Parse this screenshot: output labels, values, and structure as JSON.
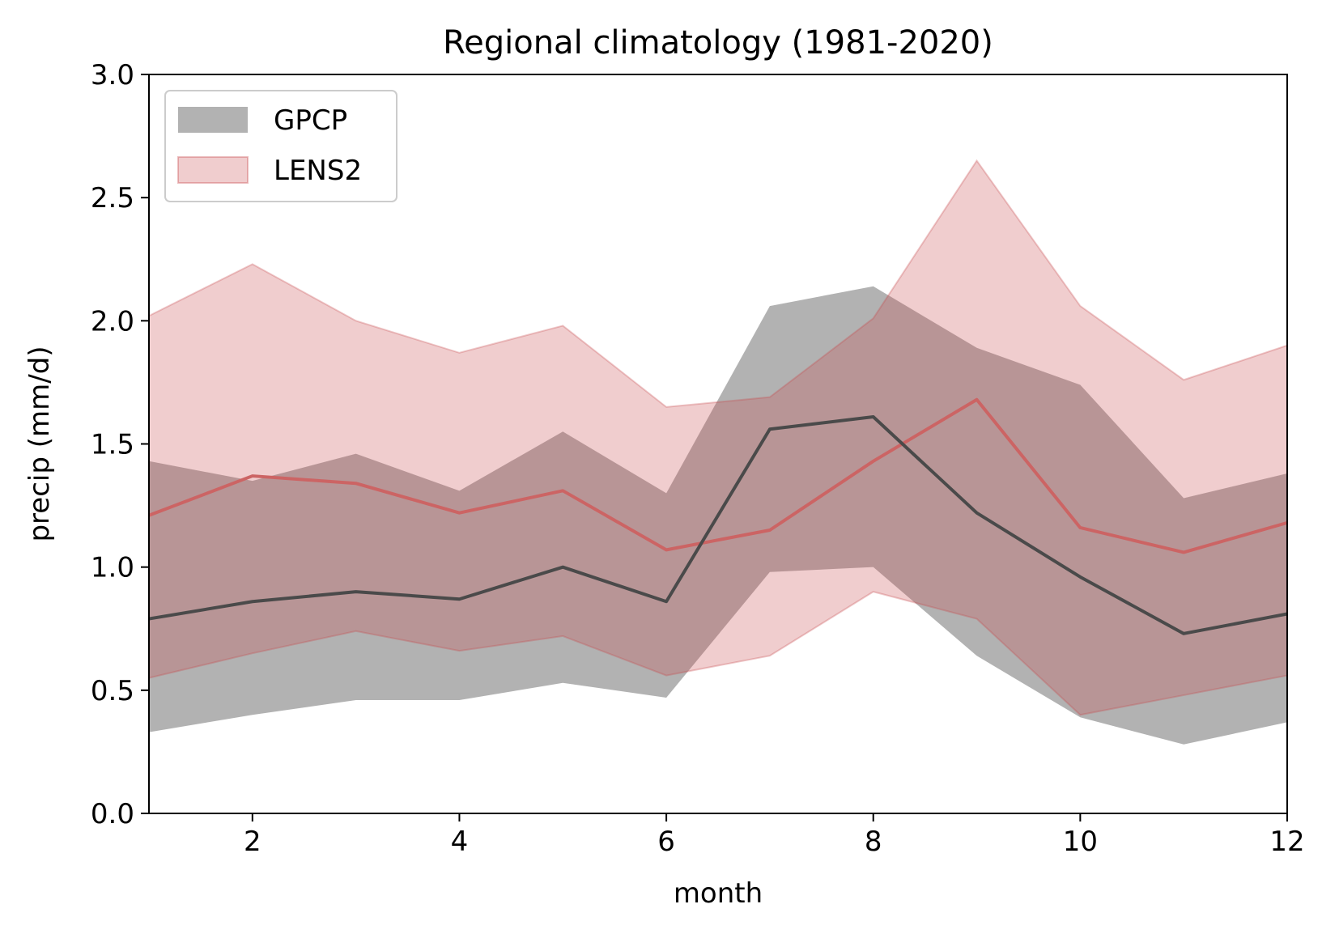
{
  "chart_data": {
    "type": "area",
    "title": "Regional climatology (1981-2020)",
    "xlabel": "month",
    "ylabel": "precip (mm/d)",
    "xlim": [
      1,
      12
    ],
    "ylim": [
      0,
      3
    ],
    "xticks": [
      "2",
      "4",
      "6",
      "8",
      "10",
      "12"
    ],
    "yticks": [
      "0.0",
      "0.5",
      "1.0",
      "1.5",
      "2.0",
      "2.5",
      "3.0"
    ],
    "grid": false,
    "legend_position": "top-left",
    "x": [
      1,
      2,
      3,
      4,
      5,
      6,
      7,
      8,
      9,
      10,
      11,
      12
    ],
    "series": [
      {
        "name": "GPCP",
        "fill_color": "#b2b2b2",
        "line_color": "#4a4a4a",
        "mean": [
          0.79,
          0.86,
          0.9,
          0.87,
          1.0,
          0.86,
          1.56,
          1.61,
          1.22,
          0.96,
          0.73,
          0.81
        ],
        "lower": [
          0.33,
          0.4,
          0.46,
          0.46,
          0.53,
          0.47,
          0.98,
          1.0,
          0.64,
          0.39,
          0.28,
          0.37
        ],
        "upper": [
          1.43,
          1.35,
          1.46,
          1.31,
          1.55,
          1.3,
          2.06,
          2.14,
          1.89,
          1.74,
          1.28,
          1.38
        ]
      },
      {
        "name": "LENS2",
        "fill_color": "#c8484b",
        "fill_opacity": 0.27,
        "line_color": "#cc6464",
        "mean": [
          1.21,
          1.37,
          1.34,
          1.22,
          1.31,
          1.07,
          1.15,
          1.43,
          1.68,
          1.16,
          1.06,
          1.18
        ],
        "lower": [
          0.55,
          0.65,
          0.74,
          0.66,
          0.72,
          0.56,
          0.64,
          0.9,
          0.79,
          0.4,
          0.48,
          0.56
        ],
        "upper": [
          2.02,
          2.23,
          2.0,
          1.87,
          1.98,
          1.65,
          1.69,
          2.01,
          2.65,
          2.06,
          1.76,
          1.9
        ]
      }
    ]
  }
}
